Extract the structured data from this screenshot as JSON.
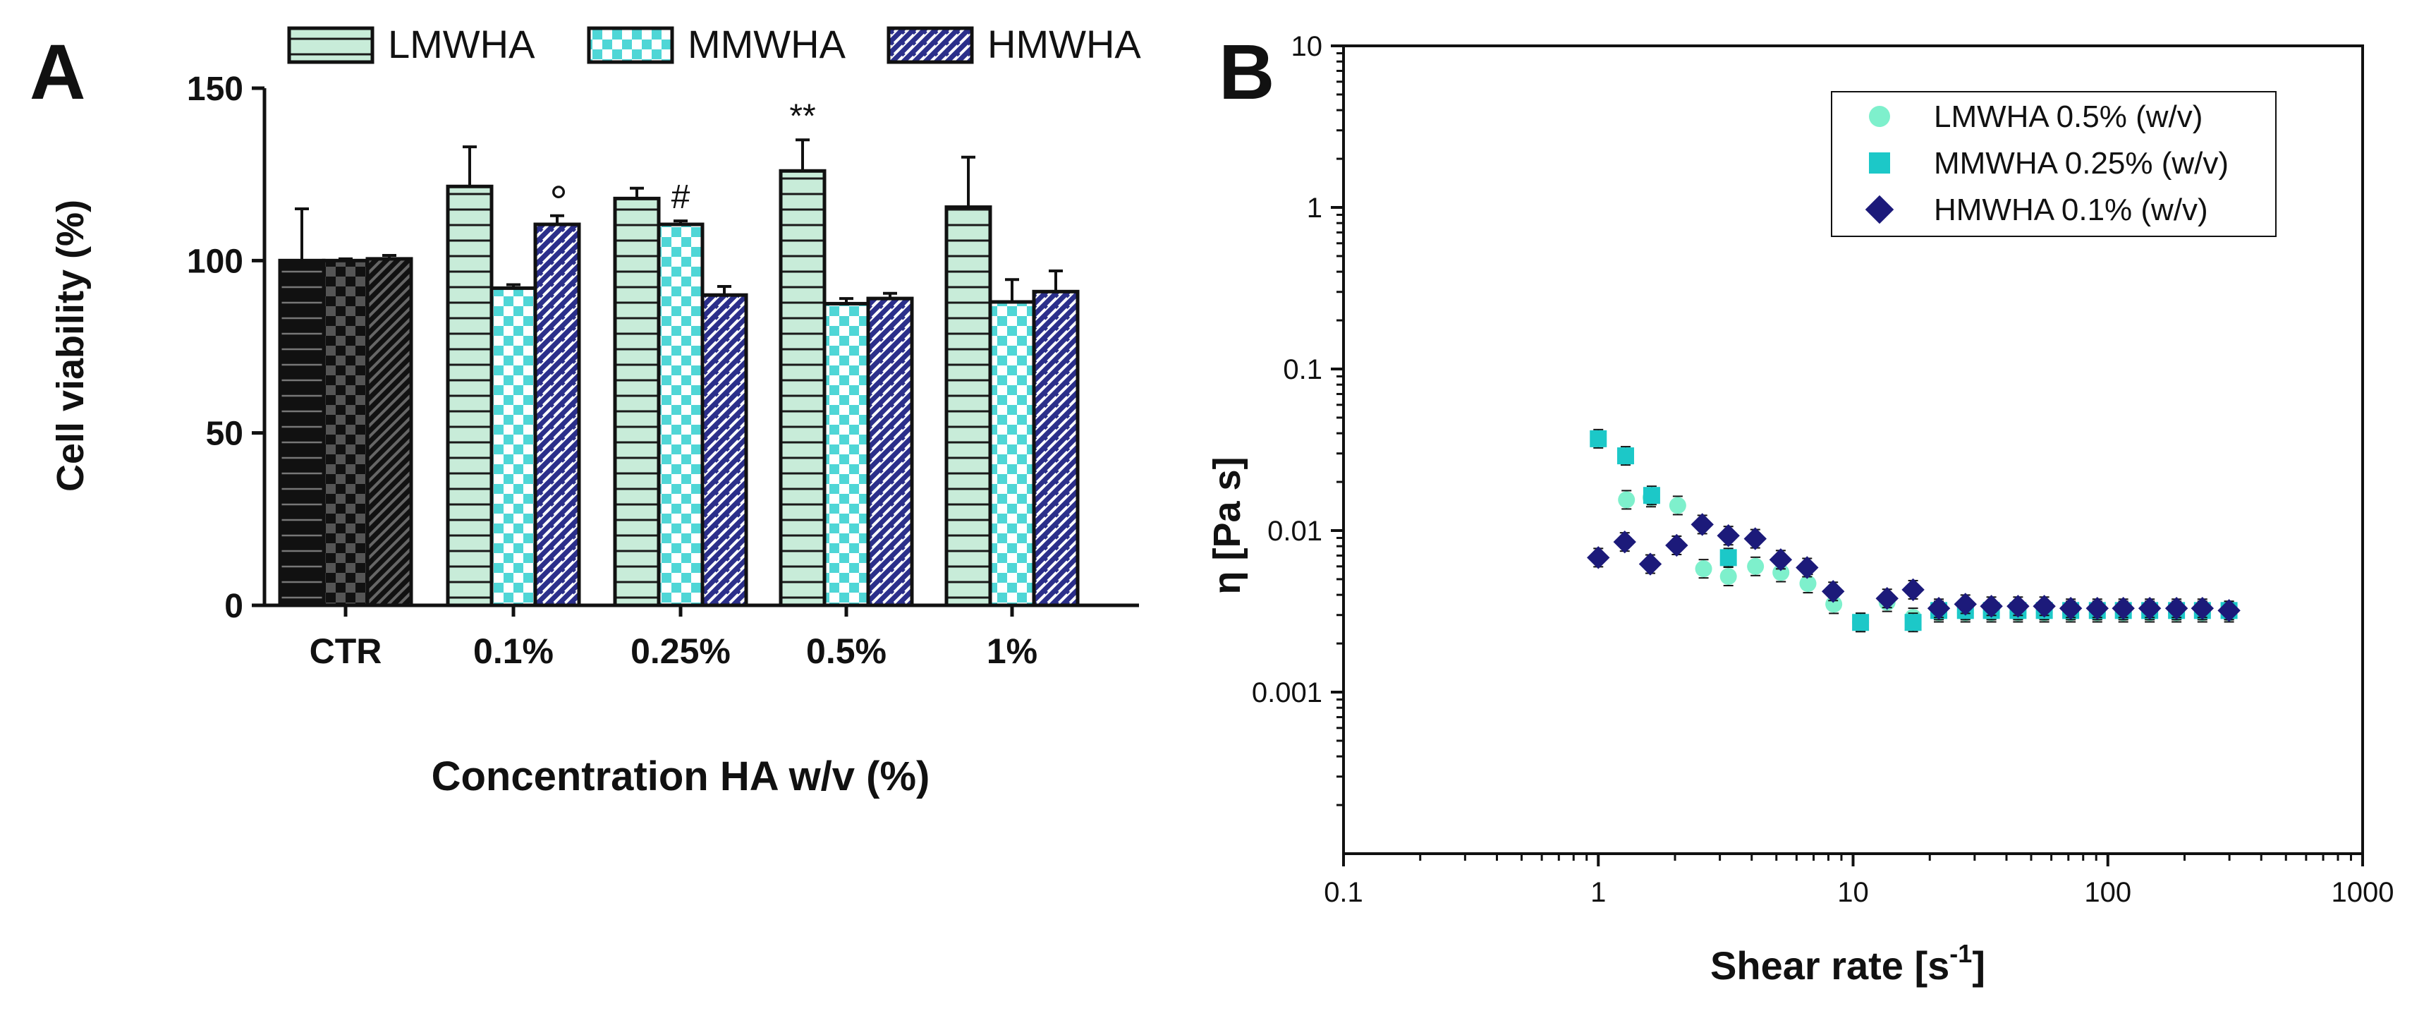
{
  "chart_data": [
    {
      "panel_label": "A",
      "type": "bar",
      "xlabel": "Concentration HA w/v (%)",
      "ylabel": "Cell viability (%)",
      "ylim": [
        0,
        150
      ],
      "yticks": [
        0,
        50,
        100,
        150
      ],
      "categories": [
        "CTR",
        "0.1%",
        "0.25%",
        "0.5%",
        "1%"
      ],
      "legend_position": "top",
      "ctr_color": "#111111",
      "series": [
        {
          "name": "LMWHA",
          "pattern": "horizontal-lines",
          "fill": "#c8ecd9",
          "values": [
            100,
            121.5,
            118,
            126,
            115.5
          ],
          "errors": [
            15,
            11.5,
            3,
            9,
            14.5
          ]
        },
        {
          "name": "MMWHA",
          "pattern": "checker",
          "fill": "#4fd6d6",
          "values": [
            100,
            92,
            110.5,
            87.5,
            88
          ],
          "errors": [
            0.5,
            1,
            1,
            1.5,
            6.5
          ]
        },
        {
          "name": "HMWHA",
          "pattern": "diagonal-bricks",
          "fill": "#2b2f8a",
          "values": [
            100.5,
            110.5,
            90,
            89,
            91
          ],
          "errors": [
            1,
            2.5,
            2.5,
            1.5,
            6
          ]
        }
      ],
      "annotations": [
        {
          "category": "0.1%",
          "series": "HMWHA",
          "text": "°"
        },
        {
          "category": "0.25%",
          "series": "MMWHA",
          "text": "#"
        },
        {
          "category": "0.5%",
          "series": "LMWHA",
          "text": "**"
        }
      ]
    },
    {
      "panel_label": "B",
      "type": "scatter",
      "xscale": "log",
      "yscale": "log",
      "xlabel": "Shear rate [s",
      "xlabel_sup": "-1",
      "xlabel_end": "]",
      "ylabel": "η [Pa s]",
      "xlim": [
        0.1,
        1000
      ],
      "ylim": [
        0.0001,
        10
      ],
      "xticks": [
        0.1,
        1,
        10,
        100,
        1000
      ],
      "xtick_labels": [
        "0.1",
        "1",
        "10",
        "100",
        "1000"
      ],
      "yticks": [
        0.001,
        0.01,
        0.1,
        1,
        10
      ],
      "ytick_labels": [
        "0.001",
        "0.01",
        "0.1",
        "1",
        "10"
      ],
      "legend_position": "top-right",
      "series": [
        {
          "name": "LMWHA 0.5% (w/v)",
          "marker": "circle",
          "color": "#7ef0cc",
          "x": [
            1.29,
            1.61,
            2.05,
            2.59,
            3.24,
            4.14,
            5.21,
            6.65,
            8.4,
            10.7,
            13.6,
            17.2,
            21.7,
            27.6,
            34.9,
            44.4,
            56.3,
            71.5,
            90.9,
            115,
            146,
            186,
            235,
            299
          ],
          "y": [
            0.0155,
            0.016,
            0.0143,
            0.0058,
            0.0052,
            0.006,
            0.0055,
            0.0047,
            0.0035,
            0.0027,
            0.0036,
            0.0029,
            0.0031,
            0.0031,
            0.0031,
            0.0031,
            0.0031,
            0.0031,
            0.0031,
            0.0031,
            0.0031,
            0.0031,
            0.0031,
            0.0031
          ]
        },
        {
          "name": "MMWHA 0.25% (w/v)",
          "marker": "square",
          "color": "#1cc8c8",
          "x": [
            1.0,
            1.28,
            1.62,
            3.24,
            10.7,
            17.2,
            21.7,
            27.6,
            34.9,
            44.4,
            56.3,
            71.5,
            90.9,
            115,
            146,
            186,
            235,
            299
          ],
          "y": [
            0.037,
            0.029,
            0.0165,
            0.0068,
            0.0027,
            0.0027,
            0.0032,
            0.0032,
            0.0032,
            0.0032,
            0.0032,
            0.0032,
            0.0032,
            0.0032,
            0.0032,
            0.0032,
            0.0032,
            0.0032
          ]
        },
        {
          "name": "HMWHA 0.1% (w/v)",
          "marker": "diamond",
          "color": "#1c1a7a",
          "x": [
            1.0,
            1.27,
            1.6,
            2.03,
            2.56,
            3.24,
            4.13,
            5.2,
            6.6,
            8.35,
            13.6,
            17.2,
            21.7,
            27.6,
            34.9,
            44.4,
            56.3,
            71.5,
            90.9,
            115,
            146,
            186,
            235,
            299
          ],
          "y": [
            0.0068,
            0.0085,
            0.0062,
            0.0081,
            0.0109,
            0.0093,
            0.0089,
            0.0066,
            0.0059,
            0.0042,
            0.0038,
            0.0043,
            0.0033,
            0.0035,
            0.0034,
            0.0034,
            0.0034,
            0.0033,
            0.0033,
            0.0033,
            0.0033,
            0.0033,
            0.0033,
            0.0032
          ]
        }
      ]
    }
  ]
}
